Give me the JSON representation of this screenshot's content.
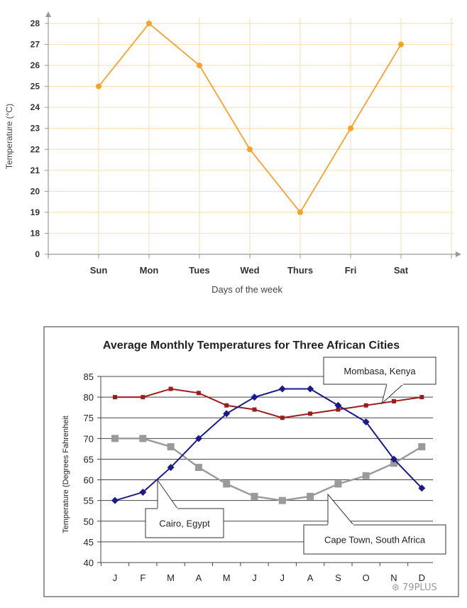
{
  "chart_data": [
    {
      "type": "line",
      "title": "",
      "xlabel": "Days of the week",
      "ylabel": "Temperature (°C)",
      "categories": [
        "Sun",
        "Mon",
        "Tues",
        "Wed",
        "Thurs",
        "Fri",
        "Sat"
      ],
      "y_ticks": [
        "0",
        "18",
        "19",
        "20",
        "21",
        "22",
        "23",
        "24",
        "25",
        "26",
        "27",
        "28"
      ],
      "y_break": "axis jumps from 0 to 18",
      "ylim": [
        18,
        28
      ],
      "series": [
        {
          "values": [
            25,
            28,
            26,
            22,
            19,
            23,
            27
          ]
        }
      ],
      "grid": true,
      "colors": {
        "line": "#f8a12c",
        "grid": "#fbe3bb",
        "axis": "#999999"
      }
    },
    {
      "type": "line",
      "title": "Average Monthly Temperatures for Three African Cities",
      "xlabel": "",
      "ylabel": "Temperature (Degrees Fahrenheit",
      "categories": [
        "J",
        "F",
        "M",
        "A",
        "M",
        "J",
        "J",
        "A",
        "S",
        "O",
        "N",
        "D"
      ],
      "y_ticks": [
        "40",
        "45",
        "50",
        "55",
        "60",
        "65",
        "70",
        "75",
        "80",
        "85"
      ],
      "ylim": [
        40,
        85
      ],
      "series": [
        {
          "name": "Mombasa, Kenya",
          "values": [
            80,
            80,
            82,
            81,
            78,
            77,
            75,
            76,
            77,
            78,
            79,
            80
          ],
          "color": "#9b1c1c",
          "marker": "square"
        },
        {
          "name": "Cairo, Egypt",
          "values": [
            55,
            57,
            63,
            70,
            76,
            80,
            82,
            82,
            78,
            74,
            65,
            58
          ],
          "color": "#1a1a8c",
          "marker": "diamond"
        },
        {
          "name": "Cape Town, South Africa",
          "values": [
            70,
            70,
            68,
            63,
            59,
            56,
            55,
            56,
            59,
            61,
            64,
            68
          ],
          "color": "#9a9a9a",
          "marker": "square"
        }
      ],
      "grid": true
    }
  ],
  "watermark": "⊛ 79PLUS"
}
